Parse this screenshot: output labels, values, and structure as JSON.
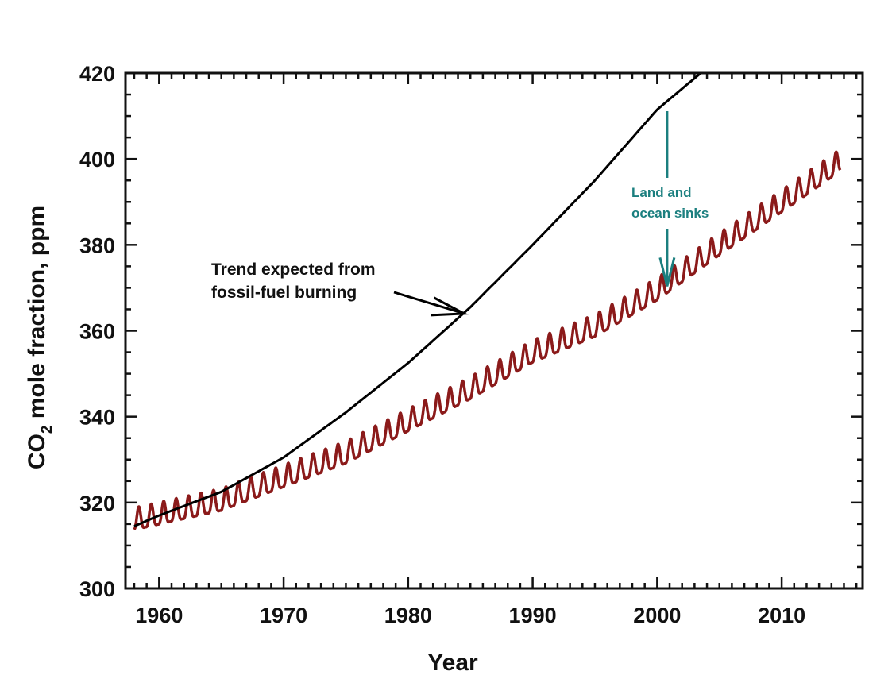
{
  "chart_data": {
    "type": "line",
    "title": "",
    "xlabel": "Year",
    "ylabel_main": "CO",
    "ylabel_sub": "2",
    "ylabel_rest": " mole fraction,  ppm",
    "xlim": [
      1957.3,
      2016.5
    ],
    "ylim": [
      300,
      420
    ],
    "x_ticks": [
      1960,
      1970,
      1980,
      1990,
      2000,
      2010
    ],
    "y_ticks": [
      300,
      320,
      340,
      360,
      380,
      400,
      420
    ],
    "series": [
      {
        "color": "#8b1a1a",
        "seasonal_amplitude": 3,
        "x": [
          1958,
          1960,
          1965,
          1970,
          1975,
          1980,
          1985,
          1990,
          1995,
          2000,
          2005,
          2010,
          2014.7
        ],
        "y": [
          315.5,
          316.8,
          320,
          325.5,
          331,
          338.5,
          346,
          354.5,
          360.5,
          369,
          379.5,
          389.5,
          399
        ]
      },
      {
        "color": "#000000",
        "x": [
          1958,
          1960,
          1965,
          1970,
          1975,
          1980,
          1985,
          1990,
          1995,
          2000,
          2003.5
        ],
        "y": [
          314.5,
          317,
          322.5,
          330.5,
          341,
          352.5,
          365.5,
          380,
          395,
          411.5,
          420
        ]
      }
    ],
    "annotations": [
      {
        "lines": [
          "Trend expected from",
          "fossil-fuel burning"
        ],
        "color": "#000000",
        "arrow_to": [
          1984.5,
          364
        ]
      },
      {
        "lines": [
          "Land and",
          "ocean sinks"
        ],
        "color": "#1b7f7f",
        "arrow_from": [
          2000.8,
          411.5
        ],
        "arrow_to": [
          2000.8,
          370
        ]
      }
    ]
  }
}
